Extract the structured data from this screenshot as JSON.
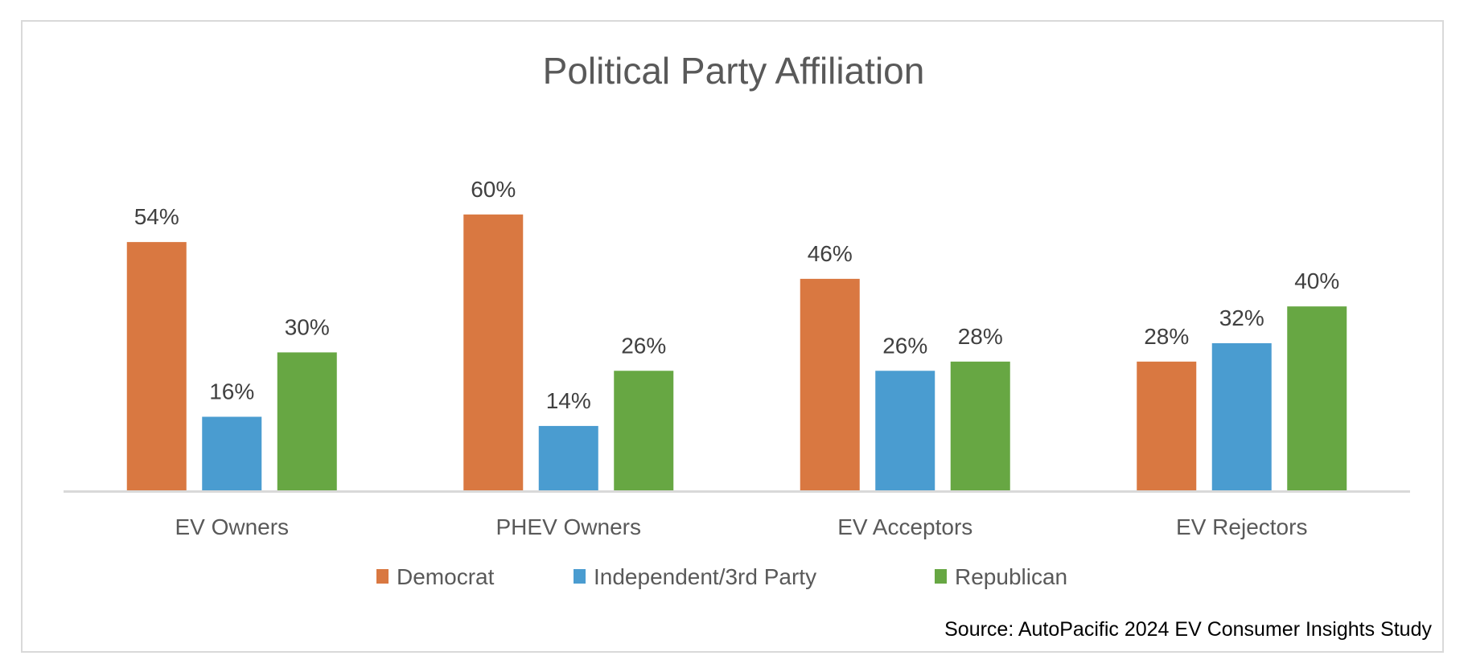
{
  "chart_data": {
    "type": "bar",
    "title": "Political Party Affiliation",
    "categories": [
      "EV Owners",
      "PHEV Owners",
      "EV Acceptors",
      "EV Rejectors"
    ],
    "series": [
      {
        "name": "Democrat",
        "color": "#d97841",
        "values": [
          54,
          60,
          46,
          28
        ],
        "labels": [
          "54%",
          "60%",
          "46%",
          "28%"
        ]
      },
      {
        "name": "Independent/3rd Party",
        "color": "#4a9cd0",
        "values": [
          16,
          14,
          26,
          32
        ],
        "labels": [
          "16%",
          "14%",
          "26%",
          "32%"
        ]
      },
      {
        "name": "Republican",
        "color": "#67a743",
        "values": [
          30,
          26,
          28,
          40
        ],
        "labels": [
          "30%",
          "26%",
          "28%",
          "40%"
        ]
      }
    ],
    "ylim": [
      0,
      60
    ],
    "grid": false,
    "legend": "bottom",
    "source": "Source: AutoPacific 2024 EV Consumer Insights Study"
  }
}
